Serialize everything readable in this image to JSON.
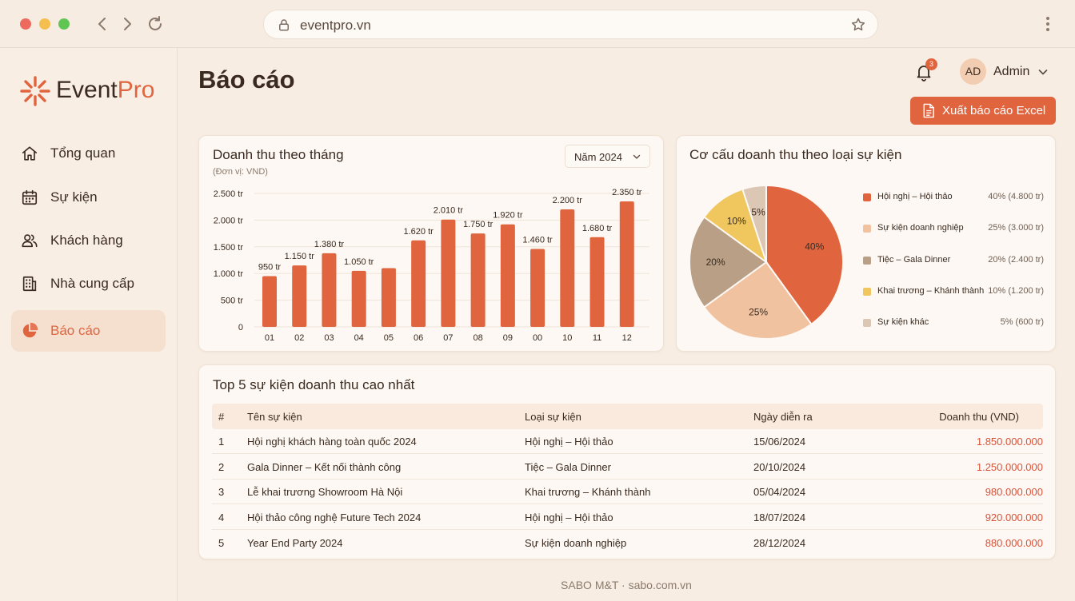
{
  "browser": {
    "url": "eventpro.vn",
    "traffic_colors": [
      "#ec6a5e",
      "#f4bf4f",
      "#61c554"
    ]
  },
  "app": {
    "logo_part1": "Event",
    "logo_part2": "Pro",
    "accent": "#e0653f"
  },
  "sidebar": {
    "items": [
      {
        "label": "Tổng quan",
        "icon": "home-icon"
      },
      {
        "label": "Sự kiện",
        "icon": "calendar-icon"
      },
      {
        "label": "Khách hàng",
        "icon": "users-icon"
      },
      {
        "label": "Nhà cung cấp",
        "icon": "building-icon"
      },
      {
        "label": "Báo cáo",
        "icon": "pie-chart-icon",
        "active": true
      }
    ]
  },
  "header": {
    "title": "Báo cáo",
    "notification_count": "3",
    "avatar_initials": "AD",
    "user_name": "Admin",
    "export_label": "Xuất báo cáo Excel"
  },
  "revenue_card": {
    "title": "Doanh thu theo tháng",
    "subtitle": "(Đơn vị: VND)",
    "year_selected": "Năm 2024"
  },
  "pie_card": {
    "title": "Cơ cấu doanh thu theo loại sự kiện"
  },
  "chart_data": [
    {
      "type": "bar",
      "title": "Doanh thu theo tháng",
      "subtitle": "(Đơn vị: VND)",
      "categories": [
        "01",
        "02",
        "03",
        "04",
        "05",
        "06",
        "07",
        "08",
        "09",
        "00",
        "10",
        "11",
        "12"
      ],
      "values": [
        950,
        1150,
        1380,
        1050,
        1100,
        1620,
        2010,
        1750,
        1920,
        1460,
        2200,
        1680,
        2350
      ],
      "data_labels": [
        "950 tr",
        "1.150 tr",
        "1.380 tr",
        "1.050 tr",
        "",
        "1.620 tr",
        "2.010 tr",
        "1.750 tr",
        "1.920 tr",
        "1.460 tr",
        "2.200 tr",
        "1.680 tr",
        "2.350 tr"
      ],
      "ytick_labels": [
        "0",
        "500 tr",
        "1.000 tr",
        "1.500 tr",
        "2.000 tr",
        "2.500 tr"
      ],
      "yticks": [
        0,
        500,
        1000,
        1500,
        2000,
        2500
      ],
      "ylim": [
        0,
        2500
      ],
      "color": "#e0653f",
      "grid": true
    },
    {
      "type": "pie",
      "title": "Cơ cấu doanh thu theo loại sự kiện",
      "slices": [
        {
          "name": "Hội nghị – Hội thảo",
          "percent": 40,
          "label": "40%",
          "value_text": "40% (4.800 tr)",
          "color": "#e0653f"
        },
        {
          "name": "Sự kiện doanh nghiệp",
          "percent": 25,
          "label": "25%",
          "value_text": "25% (3.000 tr)",
          "color": "#f1c2a0"
        },
        {
          "name": "Tiệc – Gala Dinner",
          "percent": 20,
          "label": "20%",
          "value_text": "20% (2.400 tr)",
          "color": "#b89f86"
        },
        {
          "name": "Khai trương – Khánh thành",
          "percent": 10,
          "label": "10%",
          "value_text": "10% (1.200 tr)",
          "color": "#efc75e"
        },
        {
          "name": "Sự kiện khác",
          "percent": 5,
          "label": "5%",
          "value_text": "5% (600 tr)",
          "color": "#dcc7b4"
        }
      ],
      "legend": "right"
    }
  ],
  "top_events": {
    "title": "Top 5 sự kiện doanh thu cao nhất",
    "columns": [
      "#",
      "Tên sự kiện",
      "Loại sự kiện",
      "Ngày diễn ra",
      "Doanh thu (VND)"
    ],
    "rows": [
      [
        "1",
        "Hội nghị khách hàng toàn quốc 2024",
        "Hội nghị – Hội thảo",
        "15/06/2024",
        "1.850.000.000"
      ],
      [
        "2",
        "Gala Dinner – Kết nối thành công",
        "Tiệc – Gala Dinner",
        "20/10/2024",
        "1.250.000.000"
      ],
      [
        "3",
        "Lễ khai trương Showroom Hà Nội",
        "Khai trương – Khánh thành",
        "05/04/2024",
        "980.000.000"
      ],
      [
        "4",
        "Hội thảo công nghệ Future Tech 2024",
        "Hội nghị – Hội thảo",
        "18/07/2024",
        "920.000.000"
      ],
      [
        "5",
        "Year End Party 2024",
        "Sự kiện doanh nghiệp",
        "28/12/2024",
        "880.000.000"
      ]
    ]
  },
  "footer": {
    "text": "SABO M&T · sabo.com.vn"
  }
}
